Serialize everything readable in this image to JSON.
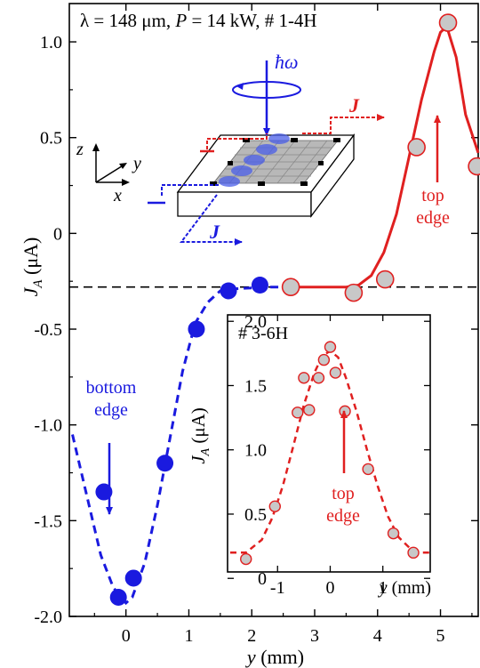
{
  "colors": {
    "axis": "#000000",
    "bottom": "#1a1adf",
    "top": "#e02020",
    "marker_fill_gray": "#c8c8c8",
    "baseline": "#000000"
  },
  "chart_data": [
    {
      "type": "scatter",
      "header": {
        "lambda": "λ = 148 μm, ",
        "power_var": "P",
        "power_rest": " = 14 kW, # 1-4H"
      },
      "ylabel": {
        "main": "J",
        "sub": "A",
        "unit": " (μA)"
      },
      "xlabel": {
        "main": "y",
        "unit": " (mm)"
      },
      "xlim": [
        -0.9,
        5.6
      ],
      "ylim": [
        -2.0,
        1.2
      ],
      "xticks": [
        "0",
        "1",
        "2",
        "3",
        "4",
        "5"
      ],
      "xtick_values": [
        0,
        1,
        2,
        3,
        4,
        5
      ],
      "yticks": [
        "-2.0",
        "-1.5",
        "-1.0",
        "-0.5",
        "0",
        "0.5",
        "1.0"
      ],
      "ytick_values": [
        -2.0,
        -1.5,
        -1.0,
        -0.5,
        0,
        0.5,
        1.0
      ],
      "baseline_y": -0.28,
      "series": [
        {
          "color": "blue",
          "x": [
            -0.35,
            -0.12,
            0.12,
            0.62,
            1.12,
            1.63,
            2.13
          ],
          "y": [
            -1.35,
            -1.9,
            -1.8,
            -1.2,
            -0.5,
            -0.3,
            -0.27
          ]
        },
        {
          "color": "gray-red-edge",
          "x": [
            2.62,
            3.62,
            4.12,
            4.62,
            5.12,
            5.58
          ],
          "y": [
            -0.28,
            -0.31,
            -0.24,
            0.45,
            1.1,
            0.35
          ]
        }
      ],
      "fit_bottom": {
        "x": [
          -0.85,
          -0.6,
          -0.4,
          -0.2,
          0.0,
          0.1,
          0.3,
          0.5,
          0.7,
          0.9,
          1.1,
          1.3,
          1.5,
          1.7,
          2.0,
          2.3,
          2.5
        ],
        "y": [
          -1.05,
          -1.4,
          -1.68,
          -1.85,
          -1.93,
          -1.9,
          -1.72,
          -1.42,
          -1.07,
          -0.72,
          -0.47,
          -0.36,
          -0.3,
          -0.29,
          -0.285,
          -0.28,
          -0.28
        ]
      },
      "fit_top": {
        "x": [
          2.5,
          3.0,
          3.5,
          3.7,
          3.9,
          4.1,
          4.3,
          4.5,
          4.7,
          4.9,
          5.0,
          5.1,
          5.25,
          5.4,
          5.6
        ],
        "y": [
          -0.28,
          -0.28,
          -0.28,
          -0.27,
          -0.22,
          -0.1,
          0.1,
          0.4,
          0.7,
          0.95,
          1.05,
          1.08,
          0.92,
          0.62,
          0.42
        ]
      },
      "annotations": {
        "bottom_edge": [
          "bottom",
          "edge"
        ],
        "top_edge": [
          "top",
          "edge"
        ]
      },
      "schematic": {
        "hbar_omega": "ħω",
        "J_top": "J",
        "J_bottom": "J",
        "axis_z": "z",
        "axis_y": "y",
        "axis_x": "x"
      }
    },
    {
      "type": "scatter",
      "title": "# 3-6H",
      "ylabel": {
        "main": "J",
        "sub": "A",
        "unit": " (μA)"
      },
      "xlabel": {
        "main": "y",
        "unit": " (mm)"
      },
      "xlim": [
        -1.95,
        1.9
      ],
      "ylim": [
        0.05,
        2.05
      ],
      "xticks": [
        "-1",
        "0",
        "1"
      ],
      "xtick_values": [
        -1,
        0,
        1
      ],
      "yticks": [
        "0",
        "0.5",
        "1.0",
        "1.5",
        "2.0"
      ],
      "ytick_values": [
        0,
        0.5,
        1.0,
        1.5,
        2.0
      ],
      "points": {
        "x": [
          -1.6,
          -1.05,
          -0.62,
          -0.5,
          -0.4,
          -0.22,
          -0.12,
          0.0,
          0.1,
          0.28,
          0.72,
          1.2,
          1.58
        ],
        "y": [
          0.15,
          0.56,
          1.29,
          1.56,
          1.31,
          1.56,
          1.7,
          1.8,
          1.6,
          1.3,
          0.85,
          0.35,
          0.2
        ]
      },
      "fit": {
        "x": [
          -1.9,
          -1.6,
          -1.3,
          -1.1,
          -0.9,
          -0.7,
          -0.5,
          -0.3,
          -0.15,
          0.0,
          0.15,
          0.3,
          0.5,
          0.7,
          0.9,
          1.1,
          1.3,
          1.5,
          1.7,
          1.9
        ],
        "y": [
          0.2,
          0.2,
          0.3,
          0.47,
          0.72,
          1.03,
          1.35,
          1.6,
          1.73,
          1.77,
          1.72,
          1.56,
          1.3,
          1.0,
          0.72,
          0.48,
          0.32,
          0.24,
          0.2,
          0.2
        ]
      },
      "annotation": [
        "top",
        "edge"
      ]
    }
  ]
}
